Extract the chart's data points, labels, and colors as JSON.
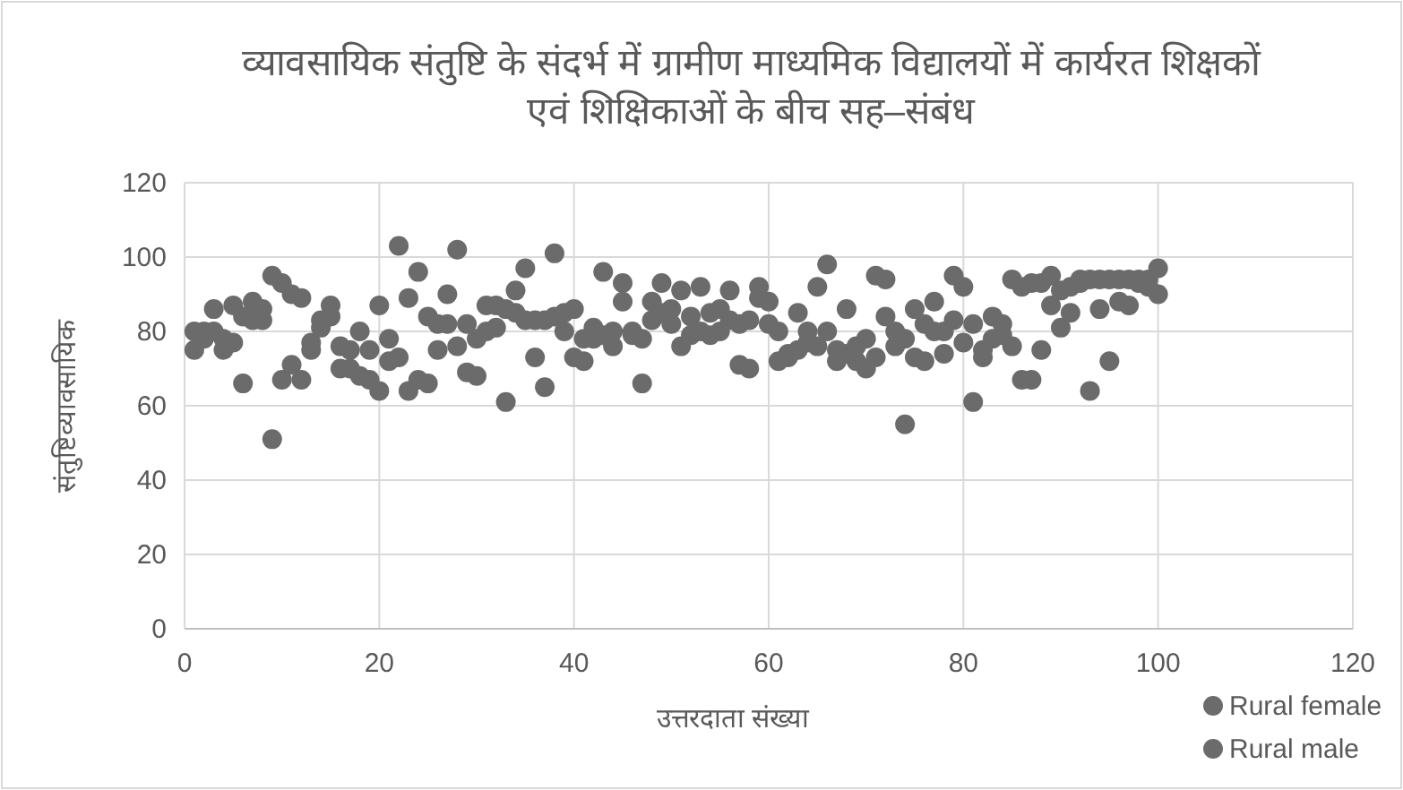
{
  "chart_data": {
    "type": "scatter",
    "title": "व्यावसायिक संतुष्टि के संदर्भ में ग्रामीण माध्यमिक विद्यालयों में कार्यरत शिक्षकों एवं शिक्षिकाओं के बीच सह–संबंध",
    "xlabel": "उत्तरदाता संख्या",
    "ylabel": "संतुष्टिव्यावसायिक",
    "x": [
      1,
      2,
      3,
      4,
      5,
      6,
      7,
      8,
      9,
      10,
      11,
      12,
      13,
      14,
      15,
      16,
      17,
      18,
      19,
      20,
      21,
      22,
      23,
      24,
      25,
      26,
      27,
      28,
      29,
      30,
      31,
      32,
      33,
      34,
      35,
      36,
      37,
      38,
      39,
      40,
      41,
      42,
      43,
      44,
      45,
      46,
      47,
      48,
      49,
      50,
      51,
      52,
      53,
      54,
      55,
      56,
      57,
      58,
      59,
      60,
      61,
      62,
      63,
      64,
      65,
      66,
      67,
      68,
      69,
      70,
      71,
      72,
      73,
      74,
      75,
      76,
      77,
      78,
      79,
      80,
      81,
      82,
      83,
      84,
      85,
      86,
      87,
      88,
      89,
      90,
      91,
      92,
      93,
      94,
      95,
      96,
      97,
      98,
      99,
      100
    ],
    "series": [
      {
        "name": "Rural female",
        "color": "#6b6b6b",
        "values": [
          75,
          80,
          86,
          75,
          87,
          66,
          88,
          86,
          95,
          93,
          90,
          89,
          75,
          81,
          87,
          76,
          75,
          80,
          67,
          64,
          78,
          103,
          64,
          96,
          84,
          75,
          90,
          102,
          69,
          68,
          80,
          87,
          61,
          91,
          97,
          73,
          65,
          101,
          80,
          73,
          72,
          78,
          96,
          76,
          93,
          80,
          66,
          88,
          93,
          82,
          91,
          79,
          92,
          85,
          80,
          91,
          71,
          70,
          92,
          82,
          72,
          73,
          85,
          77,
          92,
          98,
          72,
          86,
          72,
          78,
          95,
          94,
          76,
          55,
          86,
          82,
          88,
          74,
          95,
          92,
          61,
          73,
          84,
          82,
          94,
          67,
          93,
          93,
          95,
          81,
          92,
          94,
          64,
          94,
          72,
          94,
          87,
          94,
          92,
          97
        ]
      },
      {
        "name": "Rural male",
        "color": "#6b6b6b",
        "values": [
          80,
          78,
          80,
          78,
          77,
          84,
          83,
          83,
          51,
          67,
          71,
          67,
          77,
          83,
          84,
          70,
          70,
          68,
          75,
          87,
          72,
          73,
          89,
          67,
          66,
          82,
          82,
          76,
          82,
          78,
          87,
          81,
          86,
          85,
          83,
          83,
          83,
          84,
          85,
          86,
          78,
          81,
          79,
          80,
          88,
          79,
          78,
          83,
          85,
          86,
          76,
          84,
          80,
          79,
          86,
          83,
          82,
          83,
          89,
          88,
          80,
          74,
          75,
          80,
          76,
          80,
          75,
          74,
          76,
          70,
          73,
          84,
          80,
          78,
          73,
          72,
          80,
          80,
          83,
          77,
          82,
          75,
          78,
          79,
          76,
          92,
          67,
          75,
          87,
          91,
          85,
          93,
          94,
          86,
          94,
          88,
          94,
          93,
          94,
          90
        ]
      }
    ],
    "xlim": [
      0,
      120
    ],
    "xticks": [
      0,
      20,
      40,
      60,
      80,
      100,
      120
    ],
    "ylim": [
      0,
      120
    ],
    "yticks": [
      0,
      20,
      40,
      60,
      80,
      100,
      120
    ],
    "grid": true,
    "legend": "bottom right",
    "marker": "circle"
  }
}
